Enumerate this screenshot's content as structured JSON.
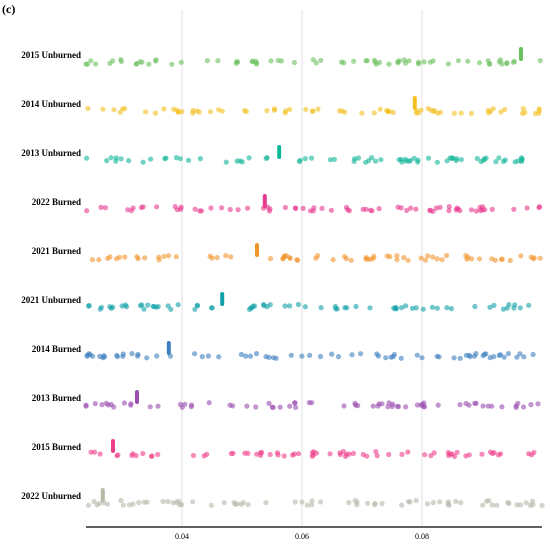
{
  "panel_label": "(c)",
  "chart_data": {
    "type": "scatter",
    "subtype": "strip",
    "title": "",
    "xlabel": "",
    "ylabel": "",
    "xlim": [
      0.024,
      0.1
    ],
    "xticks": [
      0.04,
      0.06,
      0.08
    ],
    "xtick_labels": [
      "0.04",
      "0.06",
      "0.08"
    ],
    "grid": "vertical",
    "legend": "none",
    "series": [
      {
        "name": "2015  Unburned",
        "color": "#6abf5e",
        "median": 0.0965
      },
      {
        "name": "2014  Unburned",
        "color": "#f4c020",
        "median": 0.0788
      },
      {
        "name": "2013  Unburned",
        "color": "#12b597",
        "median": 0.0562
      },
      {
        "name": "2022 Burned",
        "color": "#e8388f",
        "median": 0.0538
      },
      {
        "name": "2021 Burned",
        "color": "#f2952d",
        "median": 0.0525
      },
      {
        "name": "2021  Unburned",
        "color": "#11a0a8",
        "median": 0.0467
      },
      {
        "name": "2014 Burned",
        "color": "#3d7fc0",
        "median": 0.0378
      },
      {
        "name": "2013 Burned",
        "color": "#9b4fb0",
        "median": 0.0325
      },
      {
        "name": "2015 Burned",
        "color": "#ee3e8a",
        "median": 0.0285
      },
      {
        "name": "2022  Unburned",
        "color": "#b6b8a8",
        "median": 0.0268
      }
    ]
  }
}
